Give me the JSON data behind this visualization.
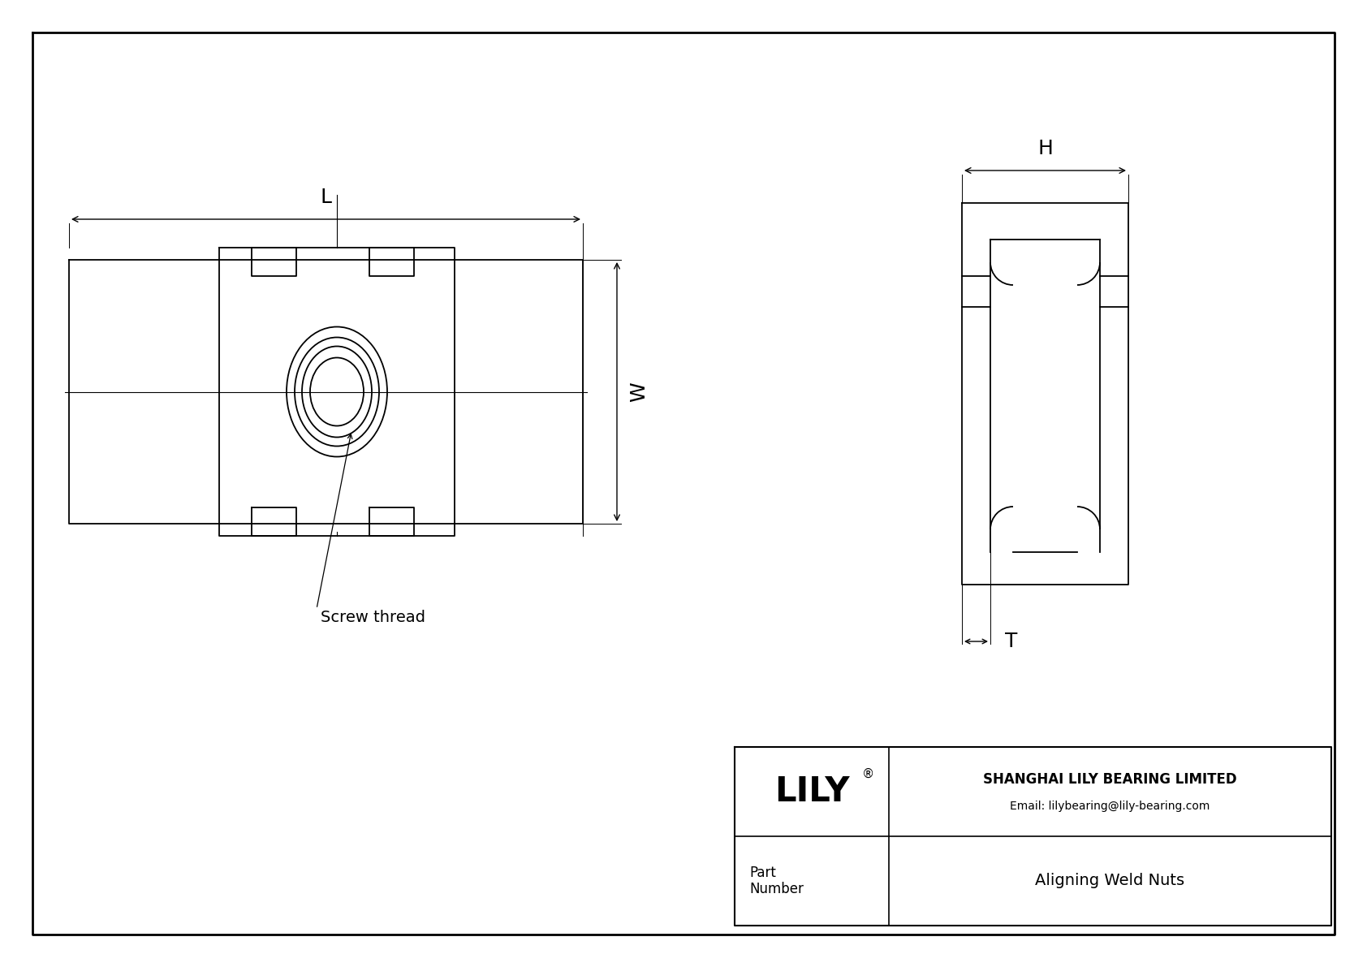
{
  "bg_color": "#ffffff",
  "line_color": "#000000",
  "title_company": "SHANGHAI LILY BEARING LIMITED",
  "title_email": "Email: lilybearing@lily-bearing.com",
  "part_label": "Part\nNumber",
  "part_name": "Aligning Weld Nuts",
  "lily_text": "LILY",
  "reg_symbol": "®",
  "dim_L": "L",
  "dim_W": "W",
  "dim_H": "H",
  "dim_T": "T",
  "screw_thread_label": "Screw thread",
  "figsize": [
    16.84,
    11.91
  ],
  "dpi": 100
}
